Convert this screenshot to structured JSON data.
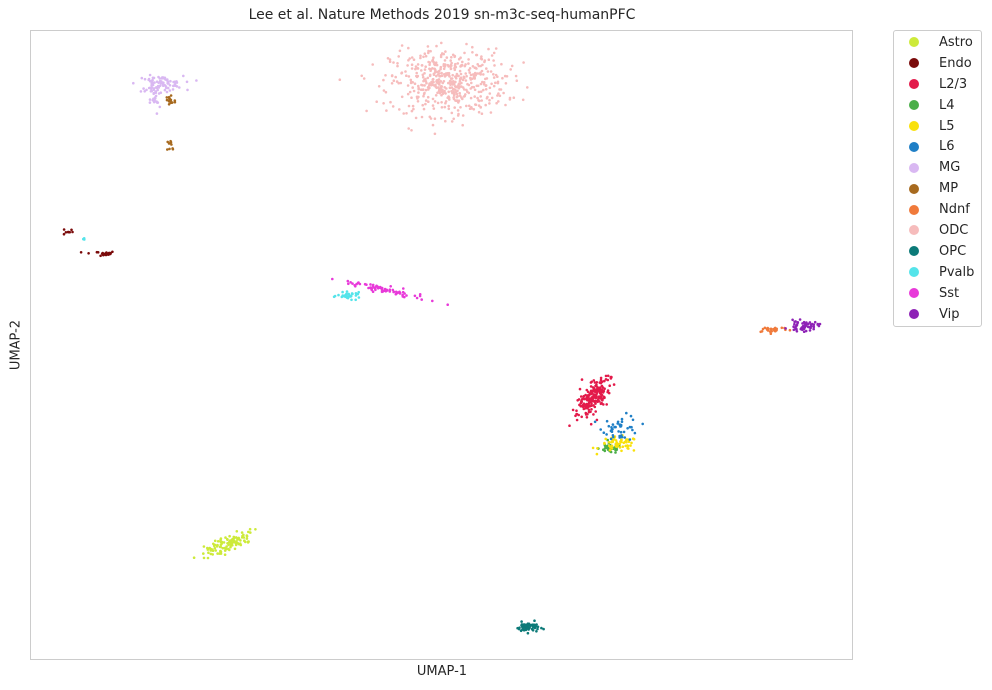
{
  "chart_data": {
    "type": "scatter",
    "title": "Lee et al. Nature Methods 2019 sn-m3c-seq-humanPFC",
    "xlabel": "UMAP-1",
    "ylabel": "UMAP-2",
    "xlim": [
      0,
      100
    ],
    "ylim": [
      0,
      100
    ],
    "grid": false,
    "legend_position": "outside-right",
    "series": [
      {
        "name": "Astro",
        "color": "#cdea3a",
        "clusters": [
          {
            "x": 23.9,
            "y": 18.3,
            "sx": 0.6,
            "sy": 1.7,
            "n": 110,
            "rot": -60
          }
        ]
      },
      {
        "name": "Endo",
        "color": "#7a0a0a",
        "clusters": [
          {
            "x": 4.6,
            "y": 68.0,
            "sx": 0.3,
            "sy": 0.3,
            "n": 8,
            "rot": 0
          },
          {
            "x": 8.5,
            "y": 64.5,
            "sx": 1.0,
            "sy": 0.2,
            "n": 22,
            "rot": 0
          }
        ]
      },
      {
        "name": "L2/3",
        "color": "#e31a4a",
        "clusters": [
          {
            "x": 68.5,
            "y": 41.8,
            "sx": 0.7,
            "sy": 1.6,
            "n": 210,
            "rot": -25
          }
        ]
      },
      {
        "name": "L4",
        "color": "#4aae48",
        "clusters": [
          {
            "x": 70.5,
            "y": 33.6,
            "sx": 0.7,
            "sy": 0.4,
            "n": 45,
            "rot": 0
          }
        ]
      },
      {
        "name": "L5",
        "color": "#f9e10c",
        "clusters": [
          {
            "x": 71.6,
            "y": 34.2,
            "sx": 1.2,
            "sy": 0.6,
            "n": 55,
            "rot": 0
          }
        ]
      },
      {
        "name": "L6",
        "color": "#1f7fc6",
        "clusters": [
          {
            "x": 71.8,
            "y": 36.8,
            "sx": 1.1,
            "sy": 1.0,
            "n": 45,
            "rot": 0
          }
        ]
      },
      {
        "name": "MG",
        "color": "#d9b8f2",
        "clusters": [
          {
            "x": 15.8,
            "y": 91.5,
            "sx": 1.4,
            "sy": 0.6,
            "n": 90,
            "rot": 0
          },
          {
            "x": 15.2,
            "y": 88.9,
            "sx": 0.3,
            "sy": 1.2,
            "n": 25,
            "rot": 0
          }
        ]
      },
      {
        "name": "MP",
        "color": "#a76a1f",
        "clusters": [
          {
            "x": 17.0,
            "y": 88.8,
            "sx": 0.35,
            "sy": 0.6,
            "n": 18,
            "rot": 0
          },
          {
            "x": 17.2,
            "y": 81.6,
            "sx": 0.3,
            "sy": 0.6,
            "n": 10,
            "rot": 0
          }
        ]
      },
      {
        "name": "Ndnf",
        "color": "#f07a3b",
        "clusters": [
          {
            "x": 90.2,
            "y": 52.5,
            "sx": 1.0,
            "sy": 0.25,
            "n": 30,
            "rot": 0
          }
        ]
      },
      {
        "name": "ODC",
        "color": "#f6bcbc",
        "clusters": [
          {
            "x": 50.8,
            "y": 91.7,
            "sx": 3.5,
            "sy": 2.6,
            "n": 520,
            "rot": 0
          }
        ]
      },
      {
        "name": "OPC",
        "color": "#0c7a78",
        "clusters": [
          {
            "x": 60.5,
            "y": 5.2,
            "sx": 0.7,
            "sy": 0.4,
            "n": 60,
            "rot": 0
          }
        ]
      },
      {
        "name": "Pvalb",
        "color": "#55e4ea",
        "clusters": [
          {
            "x": 38.8,
            "y": 57.8,
            "sx": 0.7,
            "sy": 0.25,
            "n": 35,
            "rot": 0
          },
          {
            "x": 6.6,
            "y": 66.8,
            "sx": 0.05,
            "sy": 0.2,
            "n": 3,
            "rot": 0
          }
        ]
      },
      {
        "name": "Sst",
        "color": "#e839d9",
        "clusters": [
          {
            "x": 42.8,
            "y": 58.8,
            "sx": 2.8,
            "sy": 0.3,
            "n": 75,
            "rot": -16
          }
        ]
      },
      {
        "name": "Vip",
        "color": "#8e22b6",
        "clusters": [
          {
            "x": 94.0,
            "y": 53.0,
            "sx": 0.9,
            "sy": 0.4,
            "n": 55,
            "rot": 0
          }
        ]
      }
    ]
  }
}
